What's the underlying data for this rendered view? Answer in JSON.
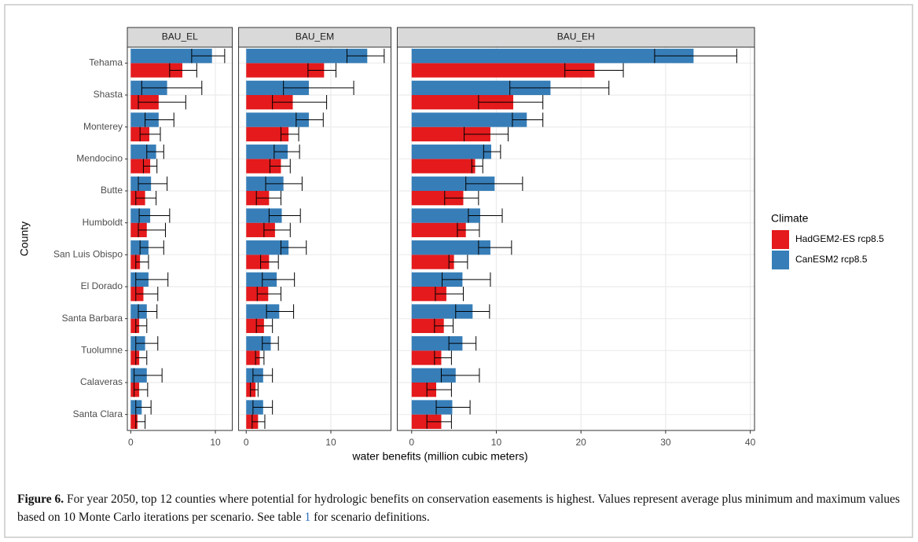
{
  "chart_data": {
    "type": "bar",
    "orientation": "horizontal",
    "categories": [
      "Tehama",
      "Shasta",
      "Monterey",
      "Mendocino",
      "Butte",
      "Humboldt",
      "San Luis Obispo",
      "El Dorado",
      "Santa Barbara",
      "Tuolumne",
      "Calaveras",
      "Santa Clara"
    ],
    "x_label": "water benefits (million cubic meters)",
    "y_label": "County",
    "legend_title": "Climate",
    "legend": [
      {
        "name": "HadGEM2-ES rcp8.5",
        "color": "#e41a1c"
      },
      {
        "name": "CanESM2 rcp8.5",
        "color": "#377eb8"
      }
    ],
    "grid": true,
    "facets": [
      {
        "title": "BAU_EL",
        "xlim": [
          -0.4,
          12.0
        ],
        "xticks": [
          0,
          10
        ],
        "series": [
          {
            "values": [
              6.1,
              3.3,
              2.2,
              2.3,
              1.7,
              1.9,
              1.1,
              1.5,
              1.0,
              1.0,
              1.0,
              0.8
            ],
            "min": [
              4.6,
              0.9,
              1.1,
              1.5,
              0.6,
              0.9,
              0.6,
              0.6,
              0.6,
              0.6,
              0.4,
              0.6
            ],
            "max": [
              7.8,
              6.5,
              3.5,
              3.1,
              3.0,
              4.1,
              2.1,
              3.2,
              1.9,
              1.9,
              2.0,
              1.7
            ]
          },
          {
            "values": [
              9.6,
              4.3,
              3.3,
              3.0,
              2.4,
              2.3,
              2.1,
              2.1,
              1.9,
              1.7,
              1.9,
              1.3
            ],
            "min": [
              7.2,
              1.3,
              1.7,
              1.9,
              0.9,
              1.0,
              1.1,
              0.6,
              0.9,
              0.6,
              0.4,
              0.6
            ],
            "max": [
              11.1,
              8.4,
              5.1,
              3.9,
              4.3,
              4.6,
              3.9,
              4.4,
              3.1,
              3.2,
              3.7,
              2.4
            ]
          }
        ]
      },
      {
        "title": "BAU_EM",
        "xlim": [
          -0.9,
          17.1
        ],
        "xticks": [
          0,
          10
        ],
        "series": [
          {
            "values": [
              9.2,
              5.5,
              5.0,
              4.1,
              2.7,
              3.4,
              2.7,
              2.6,
              2.1,
              1.6,
              1.1,
              1.4
            ],
            "min": [
              7.3,
              3.1,
              4.1,
              2.8,
              1.2,
              2.1,
              1.7,
              1.3,
              1.2,
              1.1,
              0.5,
              0.7
            ],
            "max": [
              10.6,
              9.5,
              6.2,
              5.2,
              4.1,
              5.2,
              3.8,
              4.1,
              3.1,
              2.1,
              1.4,
              2.2
            ]
          },
          {
            "values": [
              14.3,
              7.4,
              7.4,
              4.9,
              4.4,
              4.2,
              5.0,
              3.6,
              3.9,
              2.9,
              2.0,
              2.0
            ],
            "min": [
              11.9,
              4.4,
              5.9,
              3.3,
              2.3,
              2.7,
              4.1,
              1.9,
              2.4,
              1.9,
              0.8,
              0.8
            ],
            "max": [
              16.3,
              12.7,
              9.1,
              6.3,
              6.6,
              6.4,
              7.1,
              5.7,
              5.6,
              3.8,
              3.1,
              3.1
            ]
          }
        ]
      },
      {
        "title": "BAU_EH",
        "xlim": [
          -1.7,
          40.5
        ],
        "xticks": [
          0,
          10,
          20,
          30,
          40
        ],
        "series": [
          {
            "values": [
              21.6,
              12.0,
              9.3,
              7.5,
              6.1,
              6.4,
              5.0,
              4.1,
              3.8,
              3.5,
              2.9,
              3.5
            ],
            "min": [
              18.1,
              7.9,
              6.2,
              7.1,
              3.9,
              5.4,
              4.4,
              2.8,
              2.7,
              2.7,
              1.8,
              1.8
            ],
            "max": [
              25.0,
              15.5,
              11.4,
              8.4,
              7.9,
              8.0,
              6.6,
              6.1,
              4.9,
              4.7,
              4.7,
              4.7
            ]
          },
          {
            "values": [
              33.3,
              16.4,
              13.6,
              9.4,
              9.8,
              8.1,
              9.3,
              6.0,
              7.2,
              6.0,
              5.2,
              4.8
            ],
            "min": [
              28.7,
              11.6,
              11.9,
              8.5,
              6.4,
              6.7,
              7.9,
              3.6,
              5.2,
              4.4,
              3.5,
              2.9
            ],
            "max": [
              38.4,
              23.3,
              15.5,
              10.5,
              13.1,
              10.7,
              11.8,
              9.3,
              9.2,
              7.6,
              8.0,
              6.9
            ]
          }
        ]
      }
    ]
  },
  "caption": {
    "label": "Figure 6.",
    "text": " For year 2050, top 12 counties where potential for hydrologic benefits on conservation easements is highest. Values represent average plus minimum and maximum values based on 10 Monte Carlo iterations per scenario. See table ",
    "link": "1",
    "text_after": " for scenario definitions."
  }
}
